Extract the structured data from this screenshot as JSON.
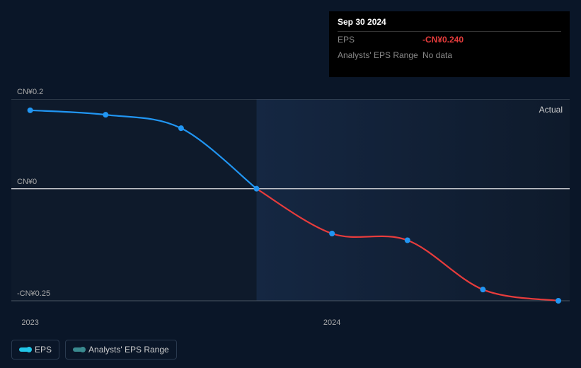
{
  "tooltip": {
    "title": "Sep 30 2024",
    "rows": [
      {
        "label": "EPS",
        "value": "-CN¥0.240",
        "neg": true
      },
      {
        "label": "Analysts' EPS Range",
        "value": "No data",
        "neg": false
      }
    ]
  },
  "chart": {
    "type": "line",
    "background_left": "#0e1a2b",
    "background_right_grad_from": "#152742",
    "background_right_grad_to": "#0e1a2b",
    "grid_color": "#4a5663",
    "zero_line_color": "#caccd1",
    "pos_color": "#2196f3",
    "neg_color": "#e73c3c",
    "marker_color": "#2196f3",
    "marker_radius": 4,
    "line_width": 2.2,
    "y_axis": {
      "min": -0.25,
      "max": 0.2,
      "ticks": [
        {
          "v": 0.2,
          "label": "CN¥0.2"
        },
        {
          "v": 0,
          "label": "CN¥0"
        },
        {
          "v": -0.25,
          "label": "-CN¥0.25"
        }
      ]
    },
    "x_axis": {
      "min": 0,
      "max": 7.4,
      "ticks": [
        {
          "v": 0.25,
          "label": "2023"
        },
        {
          "v": 4.25,
          "label": "2024"
        }
      ]
    },
    "split_x": 3.25,
    "actual_label": "Actual",
    "points": [
      {
        "x": 0.25,
        "y": 0.175
      },
      {
        "x": 1.25,
        "y": 0.165
      },
      {
        "x": 2.25,
        "y": 0.135
      },
      {
        "x": 3.25,
        "y": 0.0
      },
      {
        "x": 4.25,
        "y": -0.1
      },
      {
        "x": 5.25,
        "y": -0.115
      },
      {
        "x": 6.25,
        "y": -0.225
      },
      {
        "x": 7.25,
        "y": -0.25
      }
    ]
  },
  "legend": [
    {
      "label": "EPS",
      "color": "#22c6e8"
    },
    {
      "label": "Analysts' EPS Range",
      "color": "#3a8a8f"
    }
  ]
}
